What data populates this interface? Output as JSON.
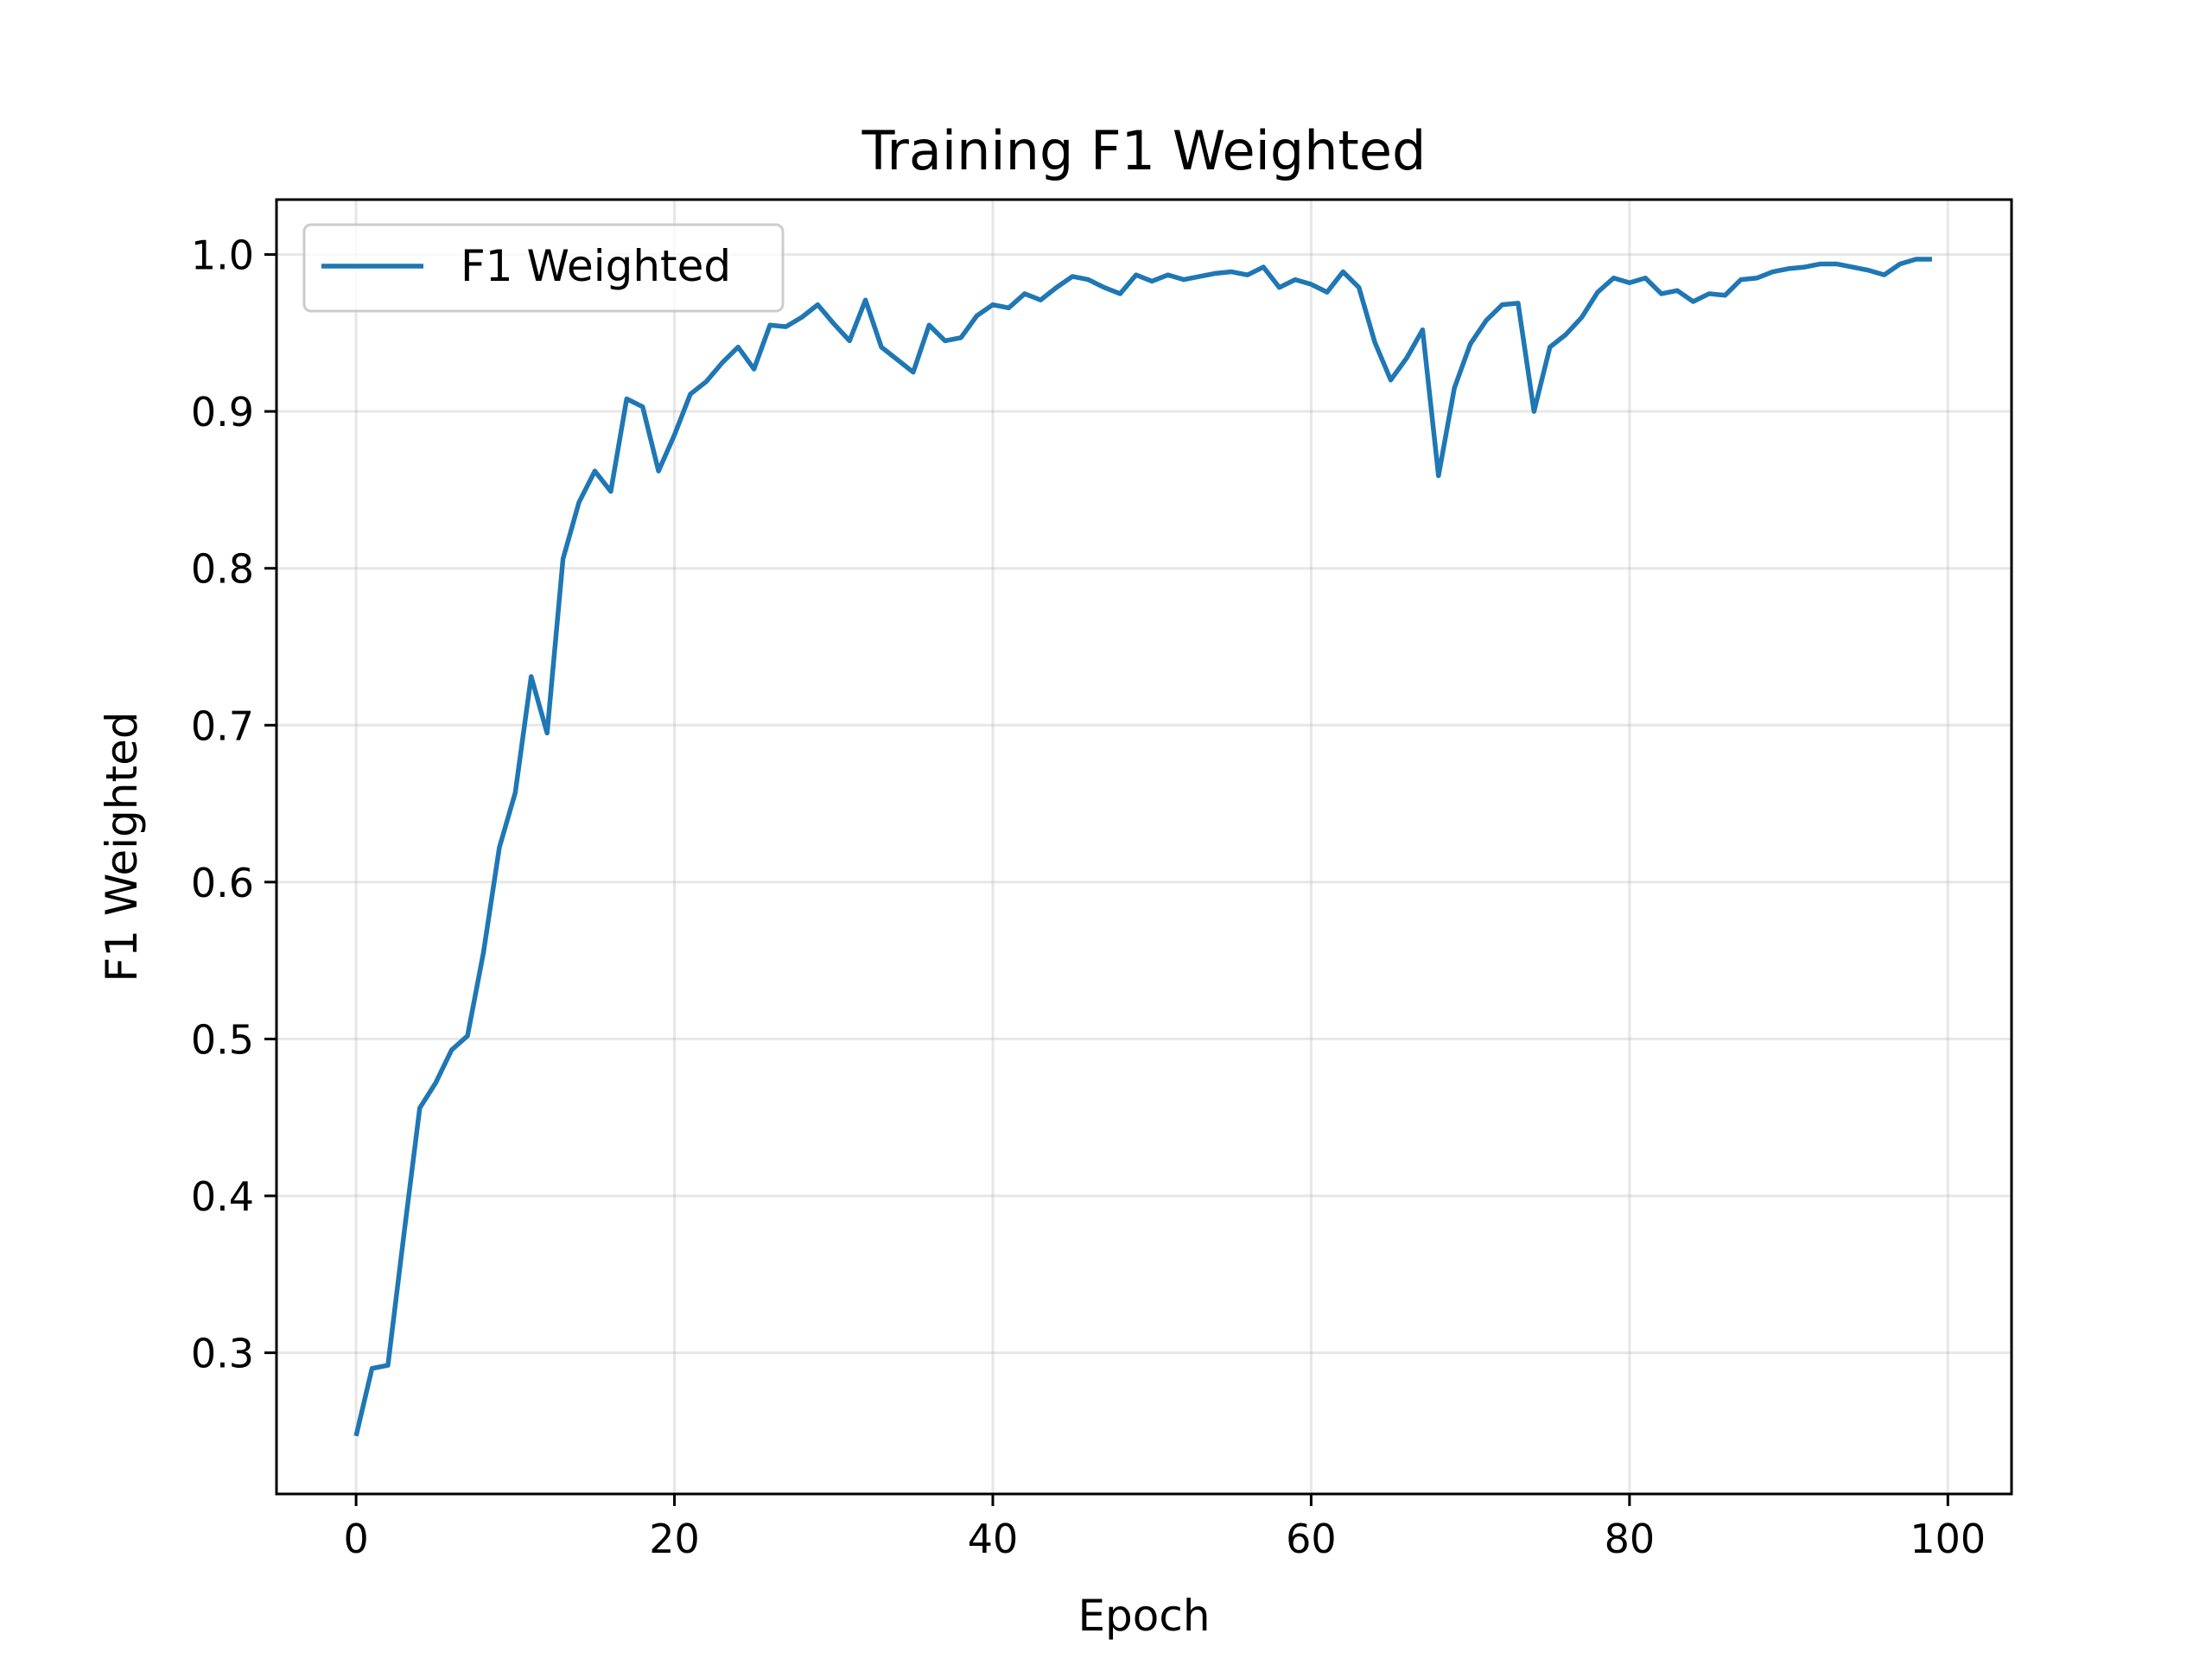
{
  "chart_data": {
    "type": "line",
    "title": "Training F1 Weighted",
    "xlabel": "Epoch",
    "ylabel": "F1 Weighted",
    "xlim": [
      -5,
      104
    ],
    "ylim": [
      0.21,
      1.035
    ],
    "xticks": [
      0,
      20,
      40,
      60,
      80,
      100
    ],
    "xtick_labels": [
      "0",
      "20",
      "40",
      "60",
      "80",
      "100"
    ],
    "yticks": [
      0.3,
      0.4,
      0.5,
      0.6,
      0.7,
      0.8,
      0.9,
      1.0
    ],
    "ytick_labels": [
      "0.3",
      "0.4",
      "0.5",
      "0.6",
      "0.7",
      "0.8",
      "0.9",
      "1.0"
    ],
    "grid": true,
    "legend_position": "upper-left",
    "series": [
      {
        "name": "F1 Weighted",
        "color": "#1f77b4",
        "x": [
          0,
          1,
          2,
          3,
          4,
          5,
          6,
          7,
          8,
          9,
          10,
          11,
          12,
          13,
          14,
          15,
          16,
          17,
          18,
          19,
          20,
          21,
          22,
          23,
          24,
          25,
          26,
          27,
          28,
          29,
          30,
          31,
          32,
          33,
          34,
          35,
          36,
          37,
          38,
          39,
          40,
          41,
          42,
          43,
          44,
          45,
          46,
          47,
          48,
          49,
          50,
          51,
          52,
          53,
          54,
          55,
          56,
          57,
          58,
          59,
          60,
          61,
          62,
          63,
          64,
          65,
          66,
          67,
          68,
          69,
          70,
          71,
          72,
          73,
          74,
          75,
          76,
          77,
          78,
          79,
          80,
          81,
          82,
          83,
          84,
          85,
          86,
          87,
          88,
          89,
          90,
          91,
          92,
          93,
          94,
          95,
          96,
          97,
          98,
          99
        ],
        "y": [
          0.247,
          0.29,
          0.292,
          0.375,
          0.456,
          0.472,
          0.493,
          0.502,
          0.555,
          0.622,
          0.657,
          0.731,
          0.695,
          0.806,
          0.842,
          0.862,
          0.849,
          0.908,
          0.903,
          0.862,
          0.885,
          0.911,
          0.919,
          0.931,
          0.941,
          0.927,
          0.955,
          0.954,
          0.96,
          0.968,
          0.956,
          0.945,
          0.971,
          0.941,
          0.933,
          0.925,
          0.955,
          0.945,
          0.947,
          0.961,
          0.968,
          0.966,
          0.975,
          0.971,
          0.979,
          0.986,
          0.984,
          0.979,
          0.975,
          0.987,
          0.983,
          0.987,
          0.984,
          0.986,
          0.988,
          0.989,
          0.987,
          0.992,
          0.979,
          0.984,
          0.981,
          0.976,
          0.989,
          0.979,
          0.944,
          0.92,
          0.934,
          0.952,
          0.859,
          0.915,
          0.943,
          0.958,
          0.968,
          0.969,
          0.9,
          0.941,
          0.949,
          0.96,
          0.976,
          0.985,
          0.982,
          0.985,
          0.975,
          0.977,
          0.97,
          0.975,
          0.974,
          0.984,
          0.985,
          0.989,
          0.991,
          0.992,
          0.994,
          0.994,
          0.992,
          0.99,
          0.987,
          0.994,
          0.997,
          0.997
        ]
      }
    ]
  }
}
